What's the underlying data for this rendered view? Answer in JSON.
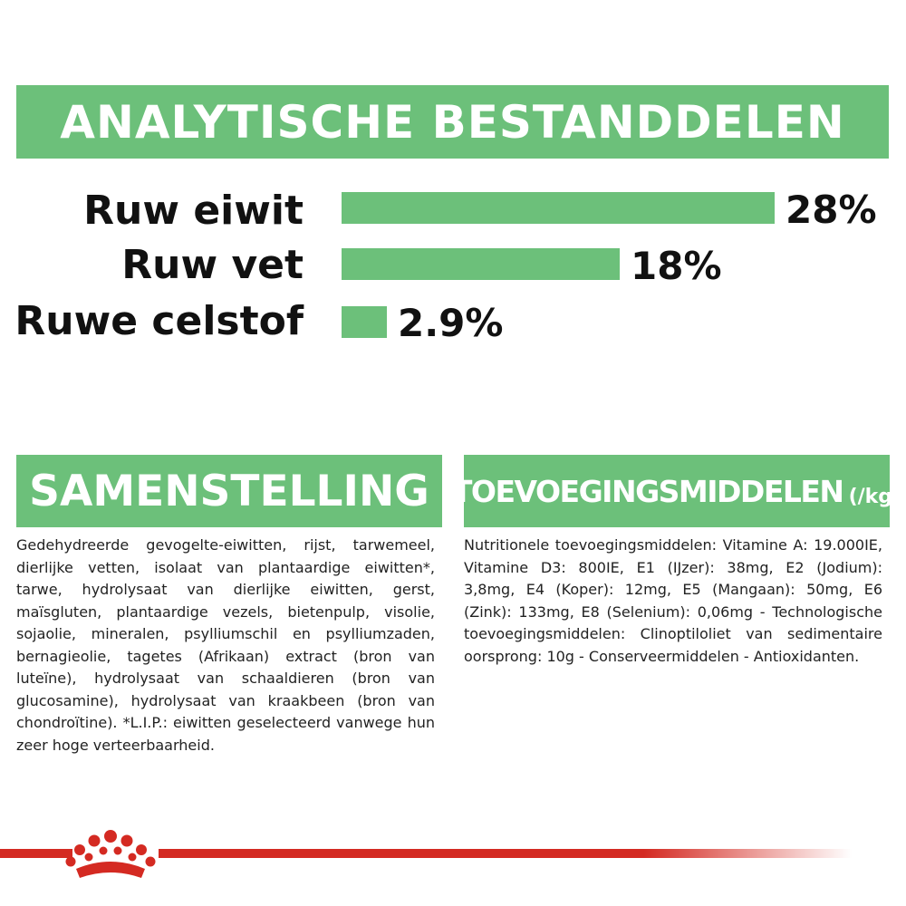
{
  "analysis": {
    "title": "ANALYTISCHE BESTANDDELEN",
    "rows": [
      {
        "label": "Ruw eiwit",
        "value": "28%",
        "percent": 28
      },
      {
        "label": "Ruw vet",
        "value": "18%",
        "percent": 18
      },
      {
        "label": "Ruwe celstof",
        "value": "2.9%",
        "percent": 2.9
      }
    ]
  },
  "composition": {
    "title": "SAMENSTELLING",
    "text": "Gedehydreerde gevogelte-eiwitten, rijst, tarwemeel, dierlijke vetten, isolaat van plantaardige eiwitten*, tarwe, hydrolysaat van dierlijke eiwitten, gerst, maïsgluten, plantaardige vezels, bietenpulp, visolie, sojaolie, mineralen, psylliumschil en psylliumzaden, bernagieolie, tagetes (Afrikaan) extract (bron van luteïne), hydrolysaat van schaaldieren (bron van glucosamine), hydrolysaat van kraakbeen (bron van chondroïtine). *L.I.P.: eiwitten geselecteerd vanwege hun zeer hoge verteerbaarheid."
  },
  "additives": {
    "title": "TOEVOEGINGSMIDDELEN",
    "unit": "(/kg)",
    "text": "Nutritionele toevoegingsmiddelen: Vitamine A: 19.000IE, Vitamine D3: 800IE, E1 (IJzer): 38mg, E2 (Jodium): 3,8mg, E4 (Koper): 12mg, E5 (Mangaan): 50mg, E6 (Zink): 133mg, E8 (Selenium): 0,06mg - Technologische toevoegingsmiddelen: Clinoptiloliet van sedimentaire oorsprong: 10g - Conserveermiddelen - Antioxidanten."
  },
  "colors": {
    "accent_green": "#6cc07a",
    "brand_red": "#d42a22"
  },
  "logo": {
    "icon": "crown-icon"
  }
}
